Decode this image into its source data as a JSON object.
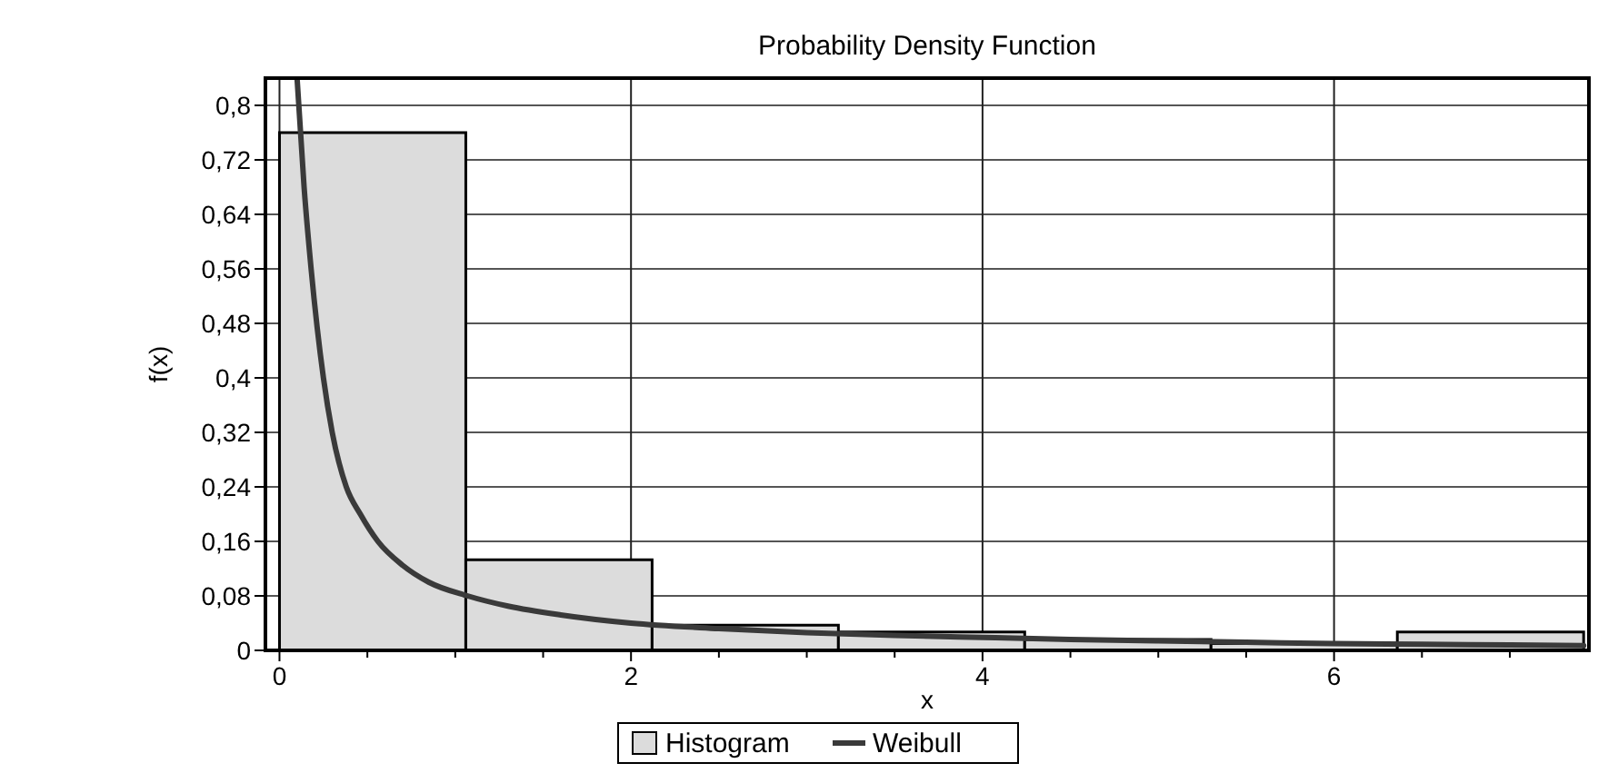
{
  "chart_data": {
    "type": "histogram",
    "title": "Probability Density Function",
    "xlabel": "x",
    "ylabel": "f(x)",
    "bins": [
      0,
      1.06,
      2.12,
      3.18,
      4.24,
      5.3,
      6.36,
      7.42
    ],
    "series": [
      {
        "name": "Histogram",
        "color": "#dcdcdc",
        "values": [
          0.76,
          0.133,
          0.037,
          0.027,
          0.016,
          0.01,
          0.027
        ]
      },
      {
        "name": "Weibull",
        "type": "line",
        "color": "#3a3a3a",
        "x": [
          0.1,
          0.14,
          0.18,
          0.25,
          0.3,
          0.38,
          0.46,
          0.56,
          0.7,
          0.85,
          1.07,
          1.3,
          1.6,
          2.0,
          2.5,
          3.0,
          3.5,
          4.0,
          4.5,
          5.0,
          5.5,
          6.0,
          6.5,
          7.0,
          7.42
        ],
        "values": [
          0.84,
          0.68,
          0.56,
          0.4,
          0.32,
          0.24,
          0.2,
          0.16,
          0.125,
          0.1,
          0.08,
          0.065,
          0.052,
          0.04,
          0.032,
          0.026,
          0.022,
          0.019,
          0.016,
          0.014,
          0.012,
          0.01,
          0.009,
          0.008,
          0.007
        ]
      }
    ],
    "xlim": [
      -0.08,
      7.45
    ],
    "ylim": [
      0,
      0.84
    ],
    "xticks": [
      0,
      {
        "value": 0.5,
        "label": null
      },
      {
        "value": 1,
        "label": null
      },
      {
        "value": 1.5,
        "label": null
      },
      2,
      {
        "value": 2.5,
        "label": null
      },
      {
        "value": 3,
        "label": null
      },
      {
        "value": 3.5,
        "label": null
      },
      4,
      {
        "value": 4.5,
        "label": null
      },
      {
        "value": 5,
        "label": null
      },
      {
        "value": 5.5,
        "label": null
      },
      6,
      {
        "value": 6.5,
        "label": null
      },
      {
        "value": 7,
        "label": null
      }
    ],
    "yticks": [
      0,
      {
        "value": 0.08,
        "label": "0,08"
      },
      {
        "value": 0.16,
        "label": "0,16"
      },
      {
        "value": 0.24,
        "label": "0,24"
      },
      {
        "value": 0.32,
        "label": "0,32"
      },
      {
        "value": 0.4,
        "label": "0,4"
      },
      {
        "value": 0.48,
        "label": "0,48"
      },
      {
        "value": 0.56,
        "label": "0,56"
      },
      {
        "value": 0.64,
        "label": "0,64"
      },
      {
        "value": 0.72,
        "label": "0,72"
      },
      {
        "value": 0.8,
        "label": "0,8"
      }
    ],
    "grid": true,
    "legend": "bottom"
  }
}
